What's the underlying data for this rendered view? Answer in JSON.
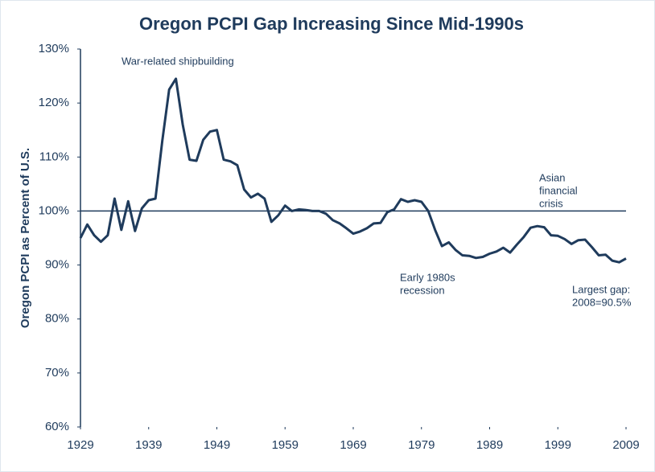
{
  "chart_data": {
    "type": "line",
    "title": "Oregon PCPI Gap Increasing Since Mid-1990s",
    "y_label": "Oregon PCPI as Percent of U.S.",
    "x": [
      1929,
      1930,
      1931,
      1932,
      1933,
      1934,
      1935,
      1936,
      1937,
      1938,
      1939,
      1940,
      1941,
      1942,
      1943,
      1944,
      1945,
      1946,
      1947,
      1948,
      1949,
      1950,
      1951,
      1952,
      1953,
      1954,
      1955,
      1956,
      1957,
      1958,
      1959,
      1960,
      1961,
      1962,
      1963,
      1964,
      1965,
      1966,
      1967,
      1968,
      1969,
      1970,
      1971,
      1972,
      1973,
      1974,
      1975,
      1976,
      1977,
      1978,
      1979,
      1980,
      1981,
      1982,
      1983,
      1984,
      1985,
      1986,
      1987,
      1988,
      1989,
      1990,
      1991,
      1992,
      1993,
      1994,
      1995,
      1996,
      1997,
      1998,
      1999,
      2000,
      2001,
      2002,
      2003,
      2004,
      2005,
      2006,
      2007,
      2008,
      2009
    ],
    "series": [
      {
        "name": "Oregon PCPI as Percent of U.S.",
        "color": "#1f3b5c",
        "values": [
          95,
          97.5,
          95.5,
          94.3,
          95.5,
          102.3,
          96.5,
          101.8,
          96.3,
          100.5,
          102,
          102.3,
          113,
          122.5,
          124.5,
          116,
          109.5,
          109.3,
          113.2,
          114.7,
          115,
          109.5,
          109.2,
          108.5,
          104,
          102.5,
          103.2,
          102.3,
          98,
          99.2,
          101,
          100,
          100.3,
          100.2,
          100,
          100,
          99.5,
          98.3,
          97.7,
          96.8,
          95.8,
          96.2,
          96.8,
          97.7,
          97.8,
          99.8,
          100.3,
          102.2,
          101.7,
          102,
          101.7,
          100,
          96.5,
          93.5,
          94.2,
          92.8,
          91.8,
          91.7,
          91.3,
          91.5,
          92.1,
          92.5,
          93.2,
          92.3,
          93.8,
          95.2,
          96.9,
          97.2,
          97,
          95.5,
          95.4,
          94.8,
          93.9,
          94.6,
          94.7,
          93.3,
          91.8,
          91.9,
          90.8,
          90.5,
          91.2
        ]
      }
    ],
    "xlim": [
      1929,
      2009
    ],
    "xticks": [
      1929,
      1939,
      1949,
      1959,
      1969,
      1979,
      1989,
      1999,
      2009
    ],
    "ylim": [
      60,
      130
    ],
    "yticks": [
      {
        "value": 60,
        "label": "60%"
      },
      {
        "value": 70,
        "label": "70%"
      },
      {
        "value": 80,
        "label": "80%"
      },
      {
        "value": 90,
        "label": "90%"
      },
      {
        "value": 100,
        "label": "100%"
      },
      {
        "value": 110,
        "label": "110%"
      },
      {
        "value": 120,
        "label": "120%"
      },
      {
        "value": 130,
        "label": "130%"
      }
    ],
    "reference_line": 100,
    "annotations": [
      {
        "lines": [
          "War-related shipbuilding"
        ]
      },
      {
        "lines": [
          "Asian",
          "financial",
          "crisis"
        ]
      },
      {
        "lines": [
          "Early 1980s",
          "recession"
        ]
      },
      {
        "lines": [
          "Largest gap:",
          "2008=90.5%"
        ]
      }
    ]
  }
}
